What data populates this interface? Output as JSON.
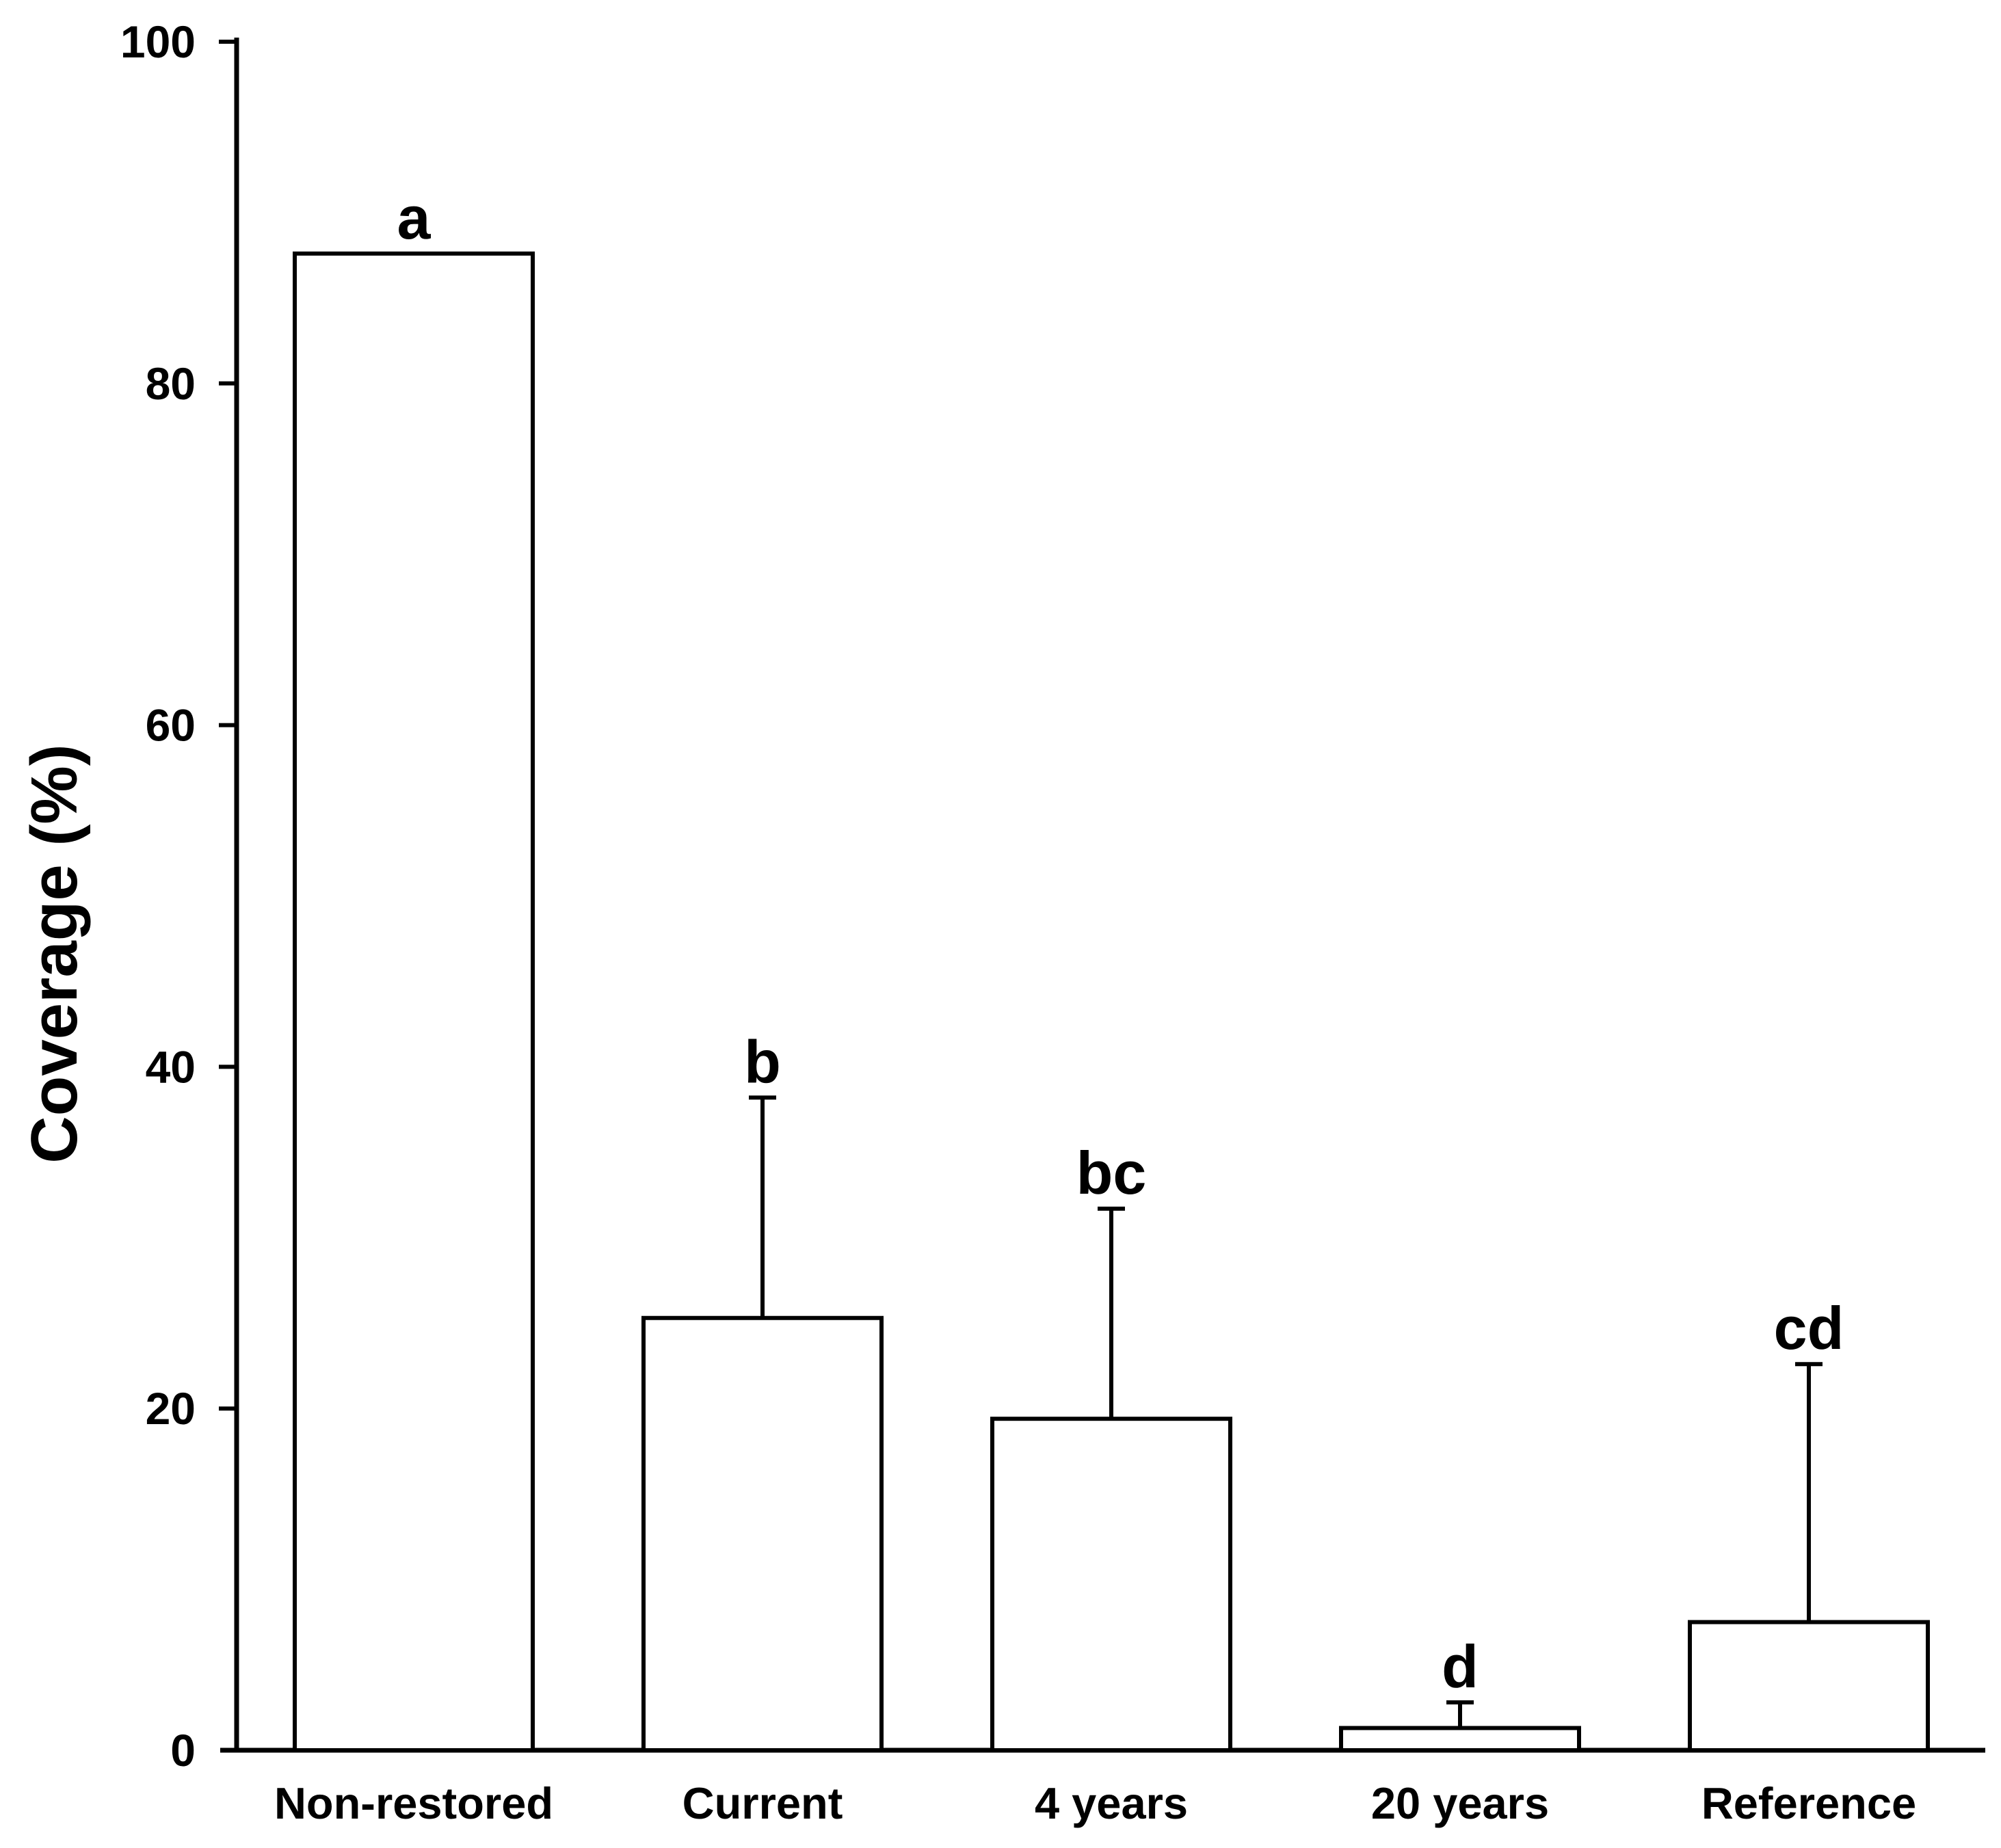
{
  "colors": {
    "ink": "#000000",
    "background": "#ffffff"
  },
  "chart_data": {
    "type": "bar",
    "title": "",
    "xlabel": "",
    "ylabel": "Coverage (%)",
    "ylim": [
      0,
      100
    ],
    "yticks": [
      0,
      20,
      40,
      60,
      80,
      100
    ],
    "grid": false,
    "legend": "none",
    "bar_fill": "#ffffff",
    "bar_stroke": "#000000",
    "categories": [
      "Non-restored",
      "Current",
      "4 years",
      "20 years",
      "Reference"
    ],
    "values": [
      87.6,
      25.3,
      19.4,
      1.3,
      7.5
    ],
    "error_upper": [
      0,
      12.9,
      12.3,
      1.5,
      15.1
    ],
    "sig_letters": [
      "a",
      "b",
      "bc",
      "d",
      "cd"
    ]
  }
}
